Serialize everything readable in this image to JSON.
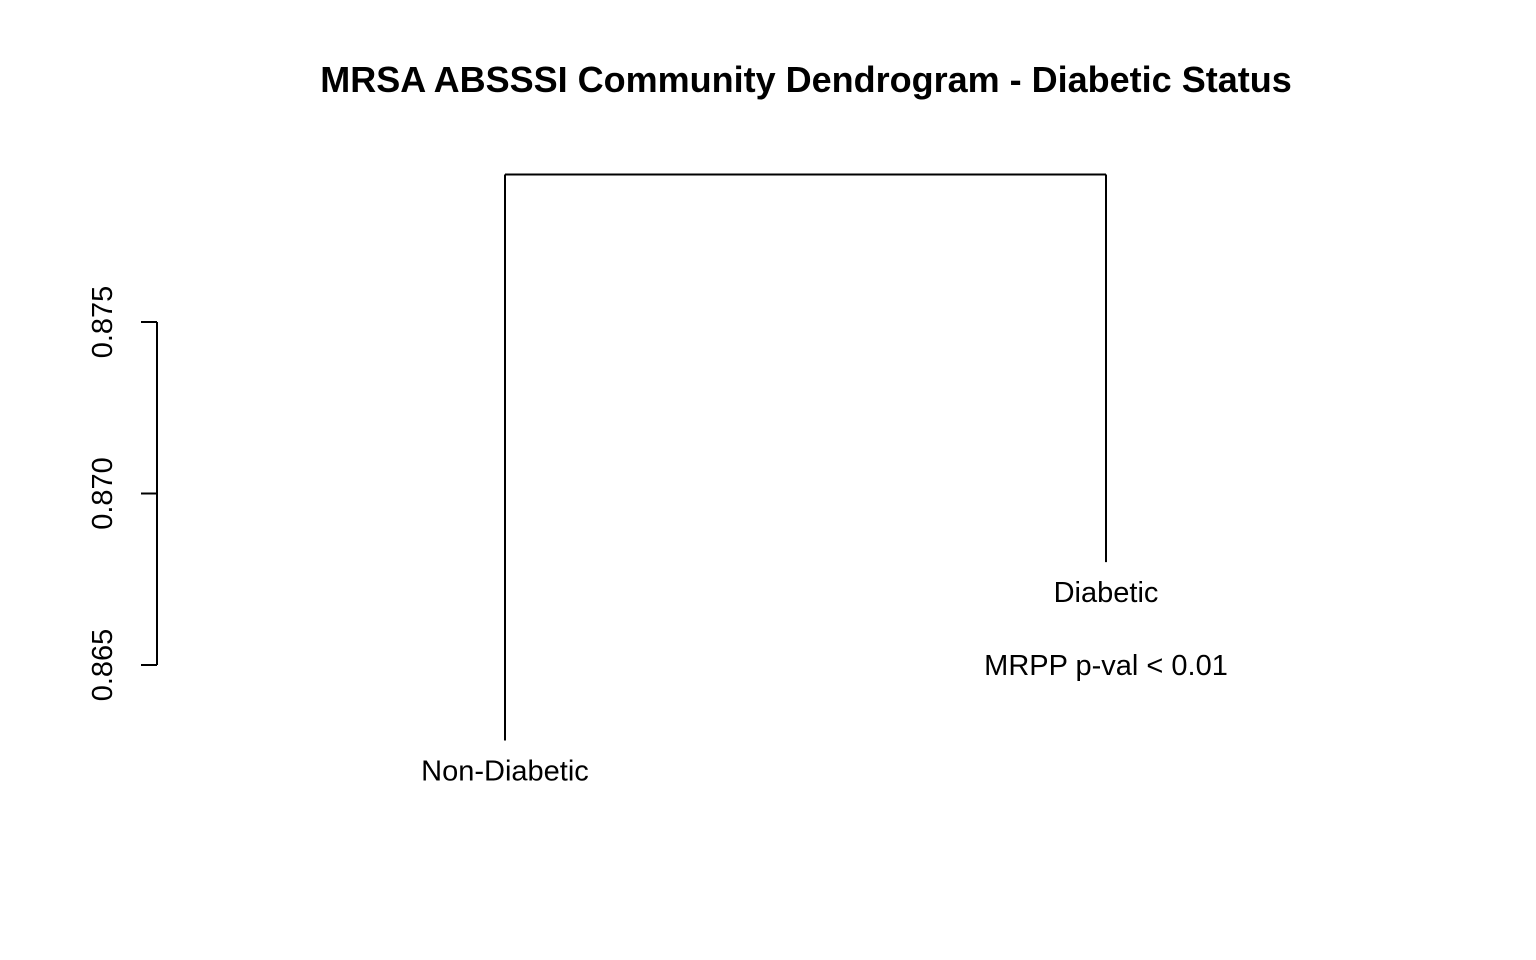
{
  "chart_data": {
    "type": "dendrogram",
    "title": "MRSA ABSSSI Community Dendrogram - Diabetic Status",
    "xlabel": "",
    "ylabel": "",
    "y_axis": {
      "ticks": [
        0.865,
        0.87,
        0.875
      ],
      "tick_labels": [
        "0.865",
        "0.870",
        "0.875"
      ]
    },
    "leaves": [
      {
        "label": "Non-Diabetic",
        "height": 0.8628
      },
      {
        "label": "Diabetic",
        "height": 0.868
      }
    ],
    "merge_height": 0.8793,
    "annotation": "MRPP p-val < 0.01",
    "grid": false,
    "legend": "none"
  }
}
